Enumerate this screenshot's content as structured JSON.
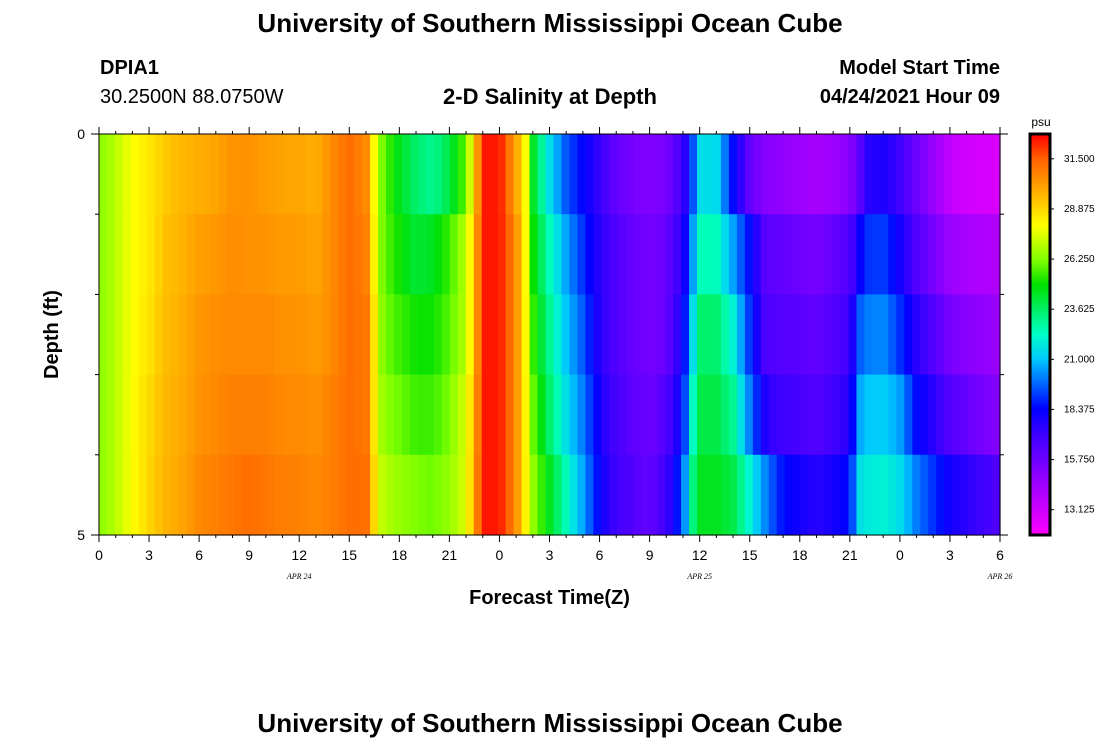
{
  "page": {
    "title_top": "University of Southern Mississippi Ocean Cube",
    "title_bottom": "University of Southern Mississippi Ocean Cube"
  },
  "header": {
    "station": "DPIA1",
    "coords": "30.2500N  88.0750W",
    "chart_title": "2-D Salinity at Depth",
    "start_label": "Model Start Time",
    "start_value": "04/24/2021 Hour 09"
  },
  "chart_data": {
    "type": "heatmap",
    "title": "2-D Salinity at Depth",
    "xlabel": "Forecast Time(Z)",
    "ylabel": "Depth (ft)",
    "units": "psu",
    "x_tick_labels": [
      "0",
      "3",
      "6",
      "9",
      "12",
      "15",
      "18",
      "21",
      "0",
      "3",
      "6",
      "9",
      "12",
      "15",
      "18",
      "21",
      "0",
      "3",
      "6"
    ],
    "date_labels": [
      {
        "label": "APR 24",
        "hour_index": 12
      },
      {
        "label": "APR 25",
        "hour_index": 36
      },
      {
        "label": "APR 26",
        "hour_index": 54
      }
    ],
    "y_tick_labels": [
      "0",
      "5"
    ],
    "ylim": [
      0,
      5
    ],
    "xlim_hours": [
      0,
      54
    ],
    "colorbar": {
      "label": "psu",
      "range": [
        11.8,
        32.8
      ],
      "ticks": [
        "31.500",
        "28.875",
        "26.250",
        "23.625",
        "21.000",
        "18.375",
        "15.750",
        "13.125"
      ],
      "tick_values": [
        31.5,
        28.875,
        26.25,
        23.625,
        21.0,
        18.375,
        15.75,
        13.125
      ],
      "stops": [
        {
          "v": 11.8,
          "c": "#ff00ff"
        },
        {
          "v": 14.4,
          "c": "#a000ff"
        },
        {
          "v": 17.0,
          "c": "#4000ff"
        },
        {
          "v": 18.4,
          "c": "#0000ff"
        },
        {
          "v": 21.0,
          "c": "#00c8ff"
        },
        {
          "v": 22.3,
          "c": "#00ffc8"
        },
        {
          "v": 24.9,
          "c": "#00e000"
        },
        {
          "v": 26.2,
          "c": "#80ff00"
        },
        {
          "v": 28.0,
          "c": "#ffff00"
        },
        {
          "v": 29.4,
          "c": "#ffc000"
        },
        {
          "v": 31.5,
          "c": "#ff6000"
        },
        {
          "v": 32.8,
          "c": "#ff0000"
        }
      ]
    },
    "depth_layers": 5,
    "time_nodes": [
      0,
      1,
      2,
      3,
      4,
      5,
      6,
      7,
      8,
      9,
      10,
      11,
      12,
      13,
      14,
      15,
      16,
      16.5,
      17,
      18,
      19,
      20,
      21,
      22,
      22.5,
      23,
      24,
      25,
      25.5,
      26,
      27,
      28,
      29,
      30,
      30.5,
      31,
      32,
      33,
      34,
      35,
      35.5,
      36,
      37,
      38,
      39,
      40,
      41,
      42,
      43,
      44,
      45,
      45.5,
      46,
      47,
      48,
      49,
      50,
      51,
      52,
      53,
      54
    ],
    "salinity_profiles": [
      [
        26.3,
        27.0,
        28.0,
        28.5,
        29.2,
        29.6,
        29.8,
        30.0,
        30.4,
        30.4,
        30.2,
        30.0,
        30.0,
        29.8,
        30.6,
        31.2,
        30.6,
        28.0,
        26.0,
        24.5,
        23.5,
        23.0,
        24.0,
        26.0,
        29.0,
        32.5,
        32.5,
        30.0,
        28.5,
        24.5,
        21.5,
        19.5,
        18.4,
        17.2,
        16.5,
        16.0,
        15.5,
        15.2,
        15.5,
        17.0,
        19.0,
        21.5,
        21.5,
        18.5,
        16.0,
        15.0,
        14.8,
        14.5,
        14.2,
        14.5,
        15.0,
        16.0,
        17.5,
        17.8,
        17.0,
        15.8,
        14.6,
        13.5,
        13.0,
        12.9,
        12.9
      ],
      [
        26.3,
        27.0,
        28.0,
        28.5,
        29.4,
        29.7,
        30.1,
        30.3,
        30.5,
        30.4,
        30.4,
        30.2,
        30.2,
        30.0,
        30.6,
        31.2,
        30.8,
        28.2,
        26.0,
        25.0,
        24.2,
        24.5,
        25.5,
        27.0,
        29.5,
        32.5,
        32.5,
        30.5,
        28.5,
        25.0,
        22.5,
        20.5,
        19.0,
        17.5,
        17.0,
        16.5,
        16.0,
        15.5,
        16.0,
        17.5,
        20.0,
        22.5,
        22.5,
        20.5,
        18.5,
        16.2,
        16.0,
        15.8,
        15.5,
        16.0,
        16.5,
        18.0,
        19.0,
        19.2,
        18.0,
        16.5,
        15.5,
        14.5,
        14.2,
        14.0,
        14.0
      ],
      [
        26.3,
        27.0,
        28.0,
        28.6,
        29.5,
        29.8,
        30.3,
        30.5,
        30.6,
        30.6,
        30.6,
        30.4,
        30.4,
        30.2,
        30.6,
        31.2,
        31.0,
        28.5,
        26.2,
        25.5,
        25.0,
        25.0,
        25.8,
        27.0,
        29.5,
        32.5,
        32.5,
        30.5,
        28.5,
        25.5,
        23.0,
        21.0,
        19.5,
        17.6,
        17.0,
        16.5,
        16.0,
        15.5,
        16.0,
        18.0,
        21.0,
        23.5,
        23.5,
        22.0,
        19.0,
        16.5,
        16.5,
        16.3,
        16.0,
        16.5,
        17.0,
        19.5,
        20.0,
        20.2,
        19.0,
        17.5,
        16.5,
        15.5,
        15.0,
        14.8,
        14.5
      ],
      [
        26.3,
        27.0,
        28.0,
        28.8,
        29.6,
        29.9,
        30.4,
        30.6,
        30.8,
        30.8,
        30.8,
        30.6,
        30.6,
        30.4,
        30.8,
        31.2,
        31.0,
        28.5,
        26.5,
        26.0,
        25.5,
        25.5,
        26.2,
        27.5,
        29.8,
        32.5,
        32.5,
        30.5,
        28.5,
        26.0,
        23.5,
        21.5,
        20.0,
        18.0,
        17.2,
        16.8,
        16.2,
        15.8,
        16.5,
        18.5,
        22.0,
        24.0,
        24.0,
        23.0,
        20.0,
        17.5,
        17.0,
        16.8,
        16.5,
        17.0,
        17.5,
        20.5,
        21.0,
        21.2,
        20.5,
        18.5,
        17.5,
        16.5,
        16.0,
        15.5,
        15.2
      ],
      [
        26.3,
        27.0,
        28.0,
        28.9,
        29.7,
        30.0,
        30.6,
        30.8,
        31.0,
        31.2,
        31.0,
        30.8,
        30.8,
        30.6,
        30.8,
        31.2,
        31.2,
        28.8,
        27.0,
        26.5,
        26.2,
        26.0,
        26.5,
        27.5,
        30.0,
        32.5,
        32.5,
        30.5,
        28.5,
        26.5,
        24.5,
        22.5,
        20.5,
        18.3,
        17.5,
        17.0,
        16.5,
        16.0,
        17.0,
        19.5,
        23.0,
        24.5,
        24.5,
        24.0,
        22.0,
        20.0,
        18.5,
        18.0,
        17.5,
        18.0,
        18.5,
        21.5,
        21.8,
        22.0,
        21.5,
        20.0,
        19.0,
        18.0,
        17.5,
        17.0,
        16.5
      ]
    ]
  }
}
